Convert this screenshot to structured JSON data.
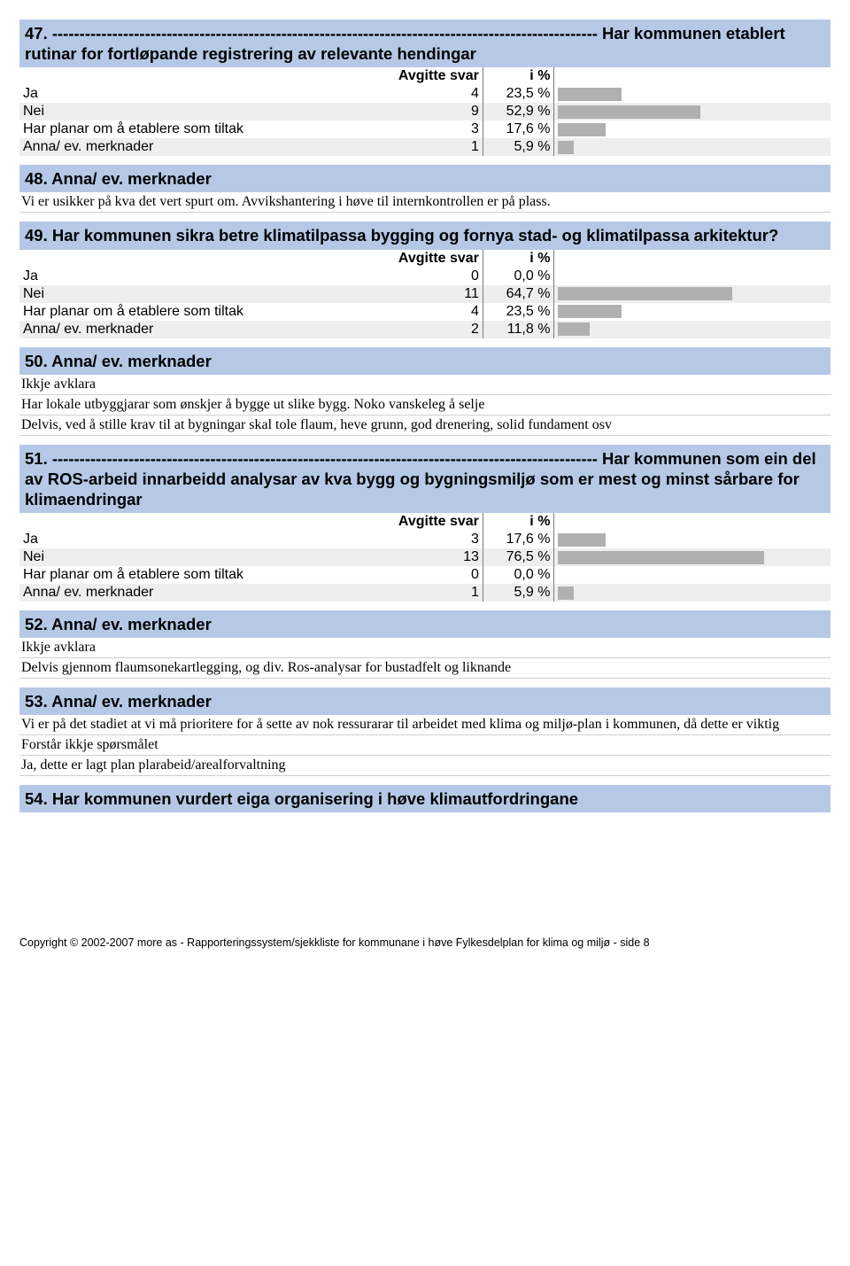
{
  "q47": {
    "title": "47. ---------------------------------------------------------------------------------------------------- Har kommunen etablert rutinar for fortløpande registrering av relevante hendingar",
    "header_count": "Avgitte svar",
    "header_pct": "i %",
    "rows": [
      {
        "label": "Ja",
        "count": "4",
        "pct": "23,5 %",
        "bar_pct": 23.5,
        "bg": "#ffffff"
      },
      {
        "label": "Nei",
        "count": "9",
        "pct": "52,9 %",
        "bar_pct": 52.9,
        "bg": "#eeeeee"
      },
      {
        "label": "Har planar om å etablere som tiltak",
        "count": "3",
        "pct": "17,6 %",
        "bar_pct": 17.6,
        "bg": "#ffffff"
      },
      {
        "label": "Anna/ ev. merknader",
        "count": "1",
        "pct": "5,9 %",
        "bar_pct": 5.9,
        "bg": "#eeeeee"
      }
    ],
    "bar_color": "#b0b0b0"
  },
  "q48": {
    "title": "48. Anna/ ev. merknader",
    "lines": [
      "Vi er usikker på kva det vert spurt om. Avvikshantering i høve til internkontrollen er på plass."
    ]
  },
  "q49": {
    "title": "49. Har kommunen sikra betre klimatilpassa bygging og fornya stad- og klimatilpassa arkitektur?",
    "header_count": "Avgitte svar",
    "header_pct": "i %",
    "rows": [
      {
        "label": "Ja",
        "count": "0",
        "pct": "0,0 %",
        "bar_pct": 0,
        "bg": "#ffffff"
      },
      {
        "label": "Nei",
        "count": "11",
        "pct": "64,7 %",
        "bar_pct": 64.7,
        "bg": "#eeeeee"
      },
      {
        "label": "Har planar om å etablere som tiltak",
        "count": "4",
        "pct": "23,5 %",
        "bar_pct": 23.5,
        "bg": "#ffffff"
      },
      {
        "label": "Anna/ ev. merknader",
        "count": "2",
        "pct": "11,8 %",
        "bar_pct": 11.8,
        "bg": "#eeeeee"
      }
    ],
    "bar_color": "#b0b0b0"
  },
  "q50": {
    "title": "50. Anna/ ev. merknader",
    "lines": [
      "Ikkje avklara",
      "Har lokale utbyggjarar som ønskjer å bygge ut slike bygg. Noko vanskeleg å selje",
      "Delvis, ved å stille krav til at bygningar skal tole flaum, heve grunn, god drenering, solid fundament osv"
    ]
  },
  "q51": {
    "title": "51. ---------------------------------------------------------------------------------------------------- Har kommunen som ein del av ROS-arbeid innarbeidd analysar av kva bygg og bygningsmiljø som er mest og minst sårbare for klimaendringar",
    "header_count": "Avgitte svar",
    "header_pct": "i %",
    "rows": [
      {
        "label": "Ja",
        "count": "3",
        "pct": "17,6 %",
        "bar_pct": 17.6,
        "bg": "#ffffff"
      },
      {
        "label": "Nei",
        "count": "13",
        "pct": "76,5 %",
        "bar_pct": 76.5,
        "bg": "#eeeeee"
      },
      {
        "label": "Har planar om å etablere som tiltak",
        "count": "0",
        "pct": "0,0 %",
        "bar_pct": 0,
        "bg": "#ffffff"
      },
      {
        "label": "Anna/ ev. merknader",
        "count": "1",
        "pct": "5,9 %",
        "bar_pct": 5.9,
        "bg": "#eeeeee"
      }
    ],
    "bar_color": "#b0b0b0"
  },
  "q52": {
    "title": "52. Anna/ ev. merknader",
    "lines": [
      "Ikkje avklara",
      "Delvis gjennom flaumsonekartlegging, og div. Ros-analysar for bustadfelt og liknande"
    ]
  },
  "q53": {
    "title": "53. Anna/ ev. merknader",
    "lines": [
      "Vi er på det stadiet at vi må prioritere for å sette av nok ressurarar til arbeidet med klima og miljø-plan i kommunen, då dette er viktig",
      "Forstår ikkje spørsmålet",
      "Ja, dette er lagt plan plarabeid/arealforvaltning"
    ]
  },
  "q54": {
    "title": "54. Har kommunen vurdert eiga organisering i høve klimautfordringane"
  },
  "footer": "Copyright © 2002-2007 more as - Rapporteringssystem/sjekkliste for kommunane i høve Fylkesdelplan for klima og miljø  - side 8"
}
